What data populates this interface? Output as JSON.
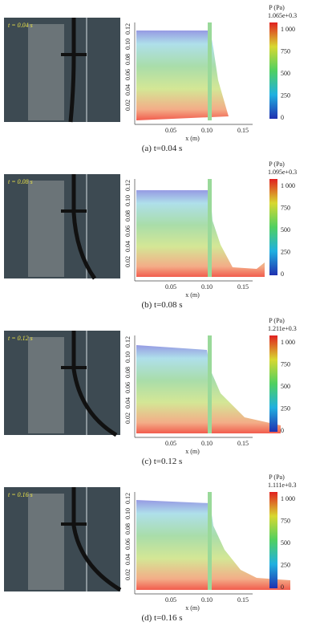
{
  "panels": [
    {
      "time_label": "t = 0.04 s",
      "plot": {
        "x_ticks": [
          "0.05",
          "0.10",
          "0.15"
        ],
        "y_ticks": [
          "0.02",
          "0.04",
          "0.06",
          "0.08",
          "0.10",
          "0.12"
        ],
        "x_label": "x (m)",
        "colorbar": {
          "title": "P (Pa)",
          "max_label": "1.065e+0.3",
          "ticks": [
            "1 000",
            "750",
            "500",
            "250",
            "0"
          ]
        }
      },
      "caption": "(a) t=0.04 s"
    },
    {
      "time_label": "t = 0.08 s",
      "plot": {
        "x_ticks": [
          "0.05",
          "0.10",
          "0.15"
        ],
        "y_ticks": [
          "0.02",
          "0.04",
          "0.06",
          "0.08",
          "0.10",
          "0.12"
        ],
        "x_label": "x (m)",
        "colorbar": {
          "title": "P (Pa)",
          "max_label": "1.095e+0.3",
          "ticks": [
            "1 000",
            "750",
            "500",
            "250",
            "0"
          ]
        }
      },
      "caption": "(b) t=0.08 s"
    },
    {
      "time_label": "t = 0.12 s",
      "plot": {
        "x_ticks": [
          "0.05",
          "0.10",
          "0.15"
        ],
        "y_ticks": [
          "0.02",
          "0.04",
          "0.06",
          "0.08",
          "0.10",
          "0.12"
        ],
        "x_label": "x (m)",
        "colorbar": {
          "title": "P (Pa)",
          "max_label": "1.211e+0.3",
          "ticks": [
            "1 000",
            "750",
            "500",
            "250",
            "0"
          ]
        }
      },
      "caption": "(c) t=0.12 s"
    },
    {
      "time_label": "t = 0.16 s",
      "plot": {
        "x_ticks": [
          "0.05",
          "0.10",
          "0.15"
        ],
        "y_ticks": [
          "0.02",
          "0.04",
          "0.06",
          "0.08",
          "0.10",
          "0.12"
        ],
        "x_label": "x (m)",
        "colorbar": {
          "title": "P (Pa)",
          "max_label": "1.111e+0.3",
          "ticks": [
            "1 000",
            "750",
            "500",
            "250",
            "0"
          ]
        }
      },
      "caption": "(d) t=0.16 s"
    }
  ]
}
